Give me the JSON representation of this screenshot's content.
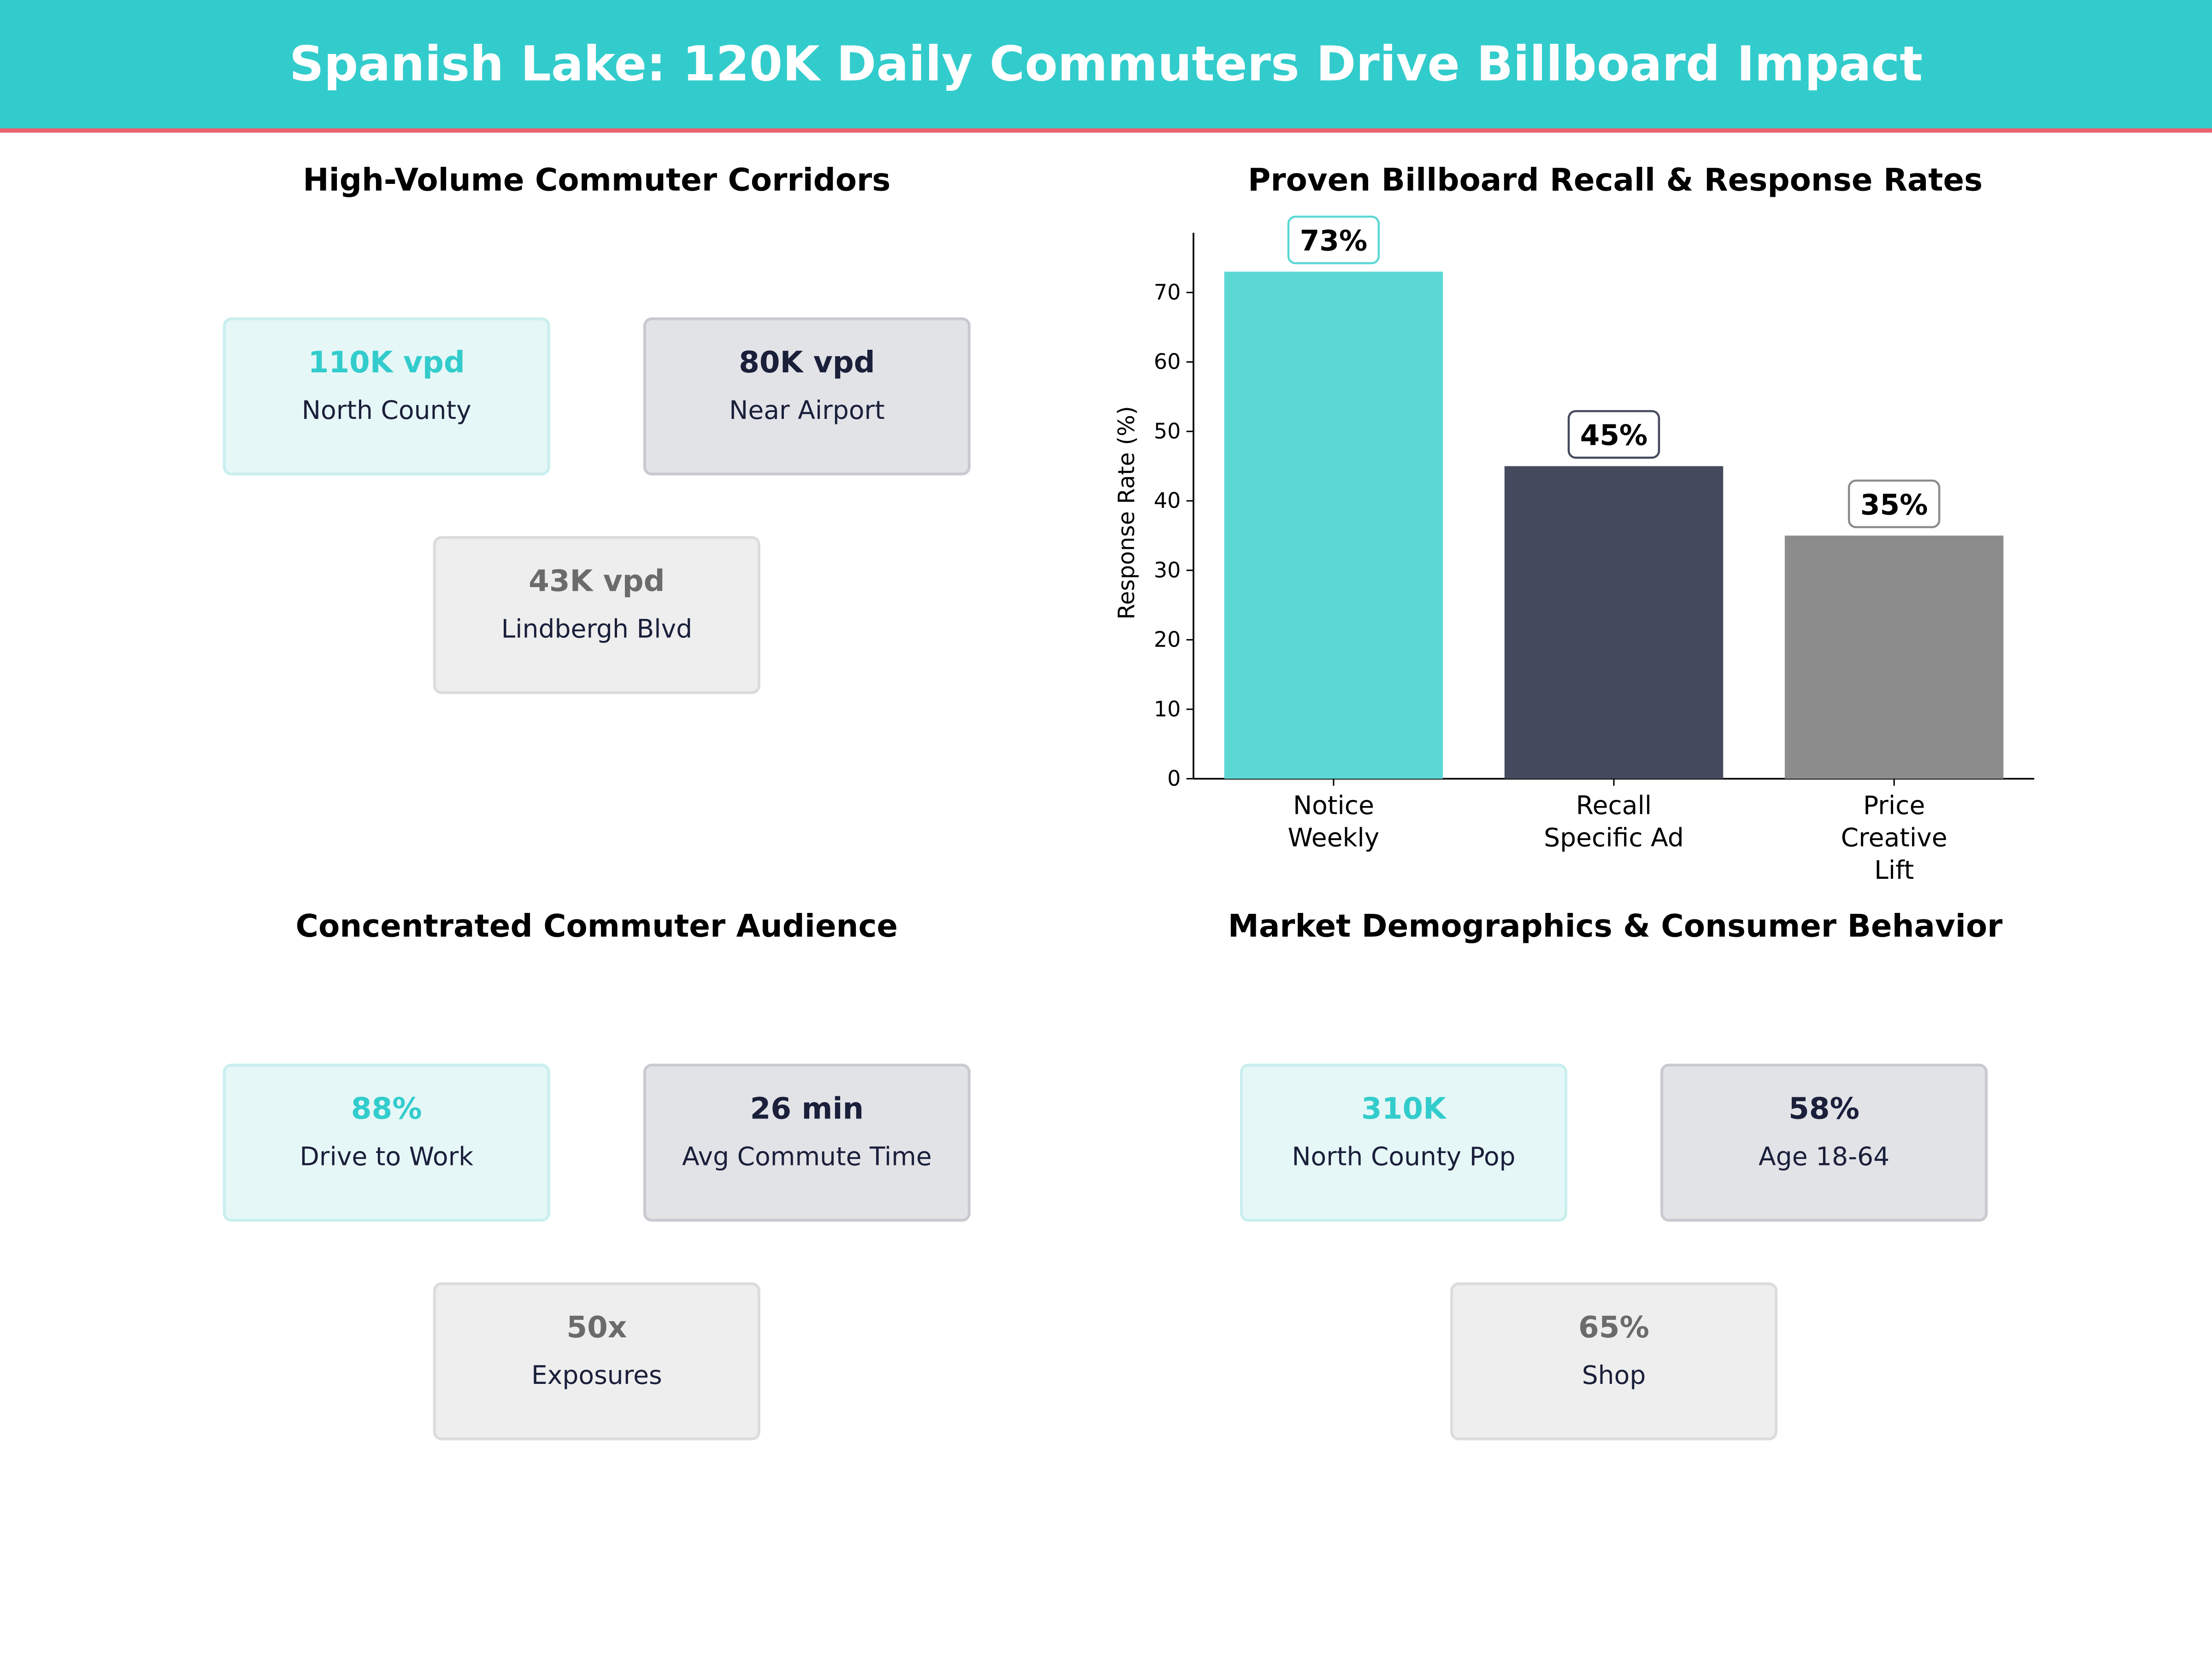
{
  "header": {
    "title": "Spanish Lake: 120K Daily Commuters Drive Billboard Impact"
  },
  "colors": {
    "accent": "#33cccc",
    "rule": "#ee5f6f",
    "dark": "#1a1f3a",
    "gray": "#6b6b6b"
  },
  "corridors": {
    "title": "High-Volume Commuter Corridors",
    "cards": [
      {
        "value": "110K vpd",
        "label": "North County"
      },
      {
        "value": "80K vpd",
        "label": "Near Airport"
      },
      {
        "value": "43K vpd",
        "label": "Lindbergh Blvd"
      }
    ]
  },
  "audience": {
    "title": "Concentrated Commuter Audience",
    "cards": [
      {
        "value": "88%",
        "label": "Drive to Work"
      },
      {
        "value": "26 min",
        "label": "Avg Commute Time"
      },
      {
        "value": "50x",
        "label": "Exposures"
      }
    ]
  },
  "demographics": {
    "title": "Market Demographics & Consumer Behavior",
    "cards": [
      {
        "value": "310K",
        "label": "North County Pop"
      },
      {
        "value": "58%",
        "label": "Age 18-64"
      },
      {
        "value": "65%",
        "label": "Shop"
      }
    ]
  },
  "chart_data": {
    "type": "bar",
    "title": "Proven Billboard Recall & Response Rates",
    "xlabel": "",
    "ylabel": "Response Rate (%)",
    "categories": [
      [
        "Notice",
        "Weekly"
      ],
      [
        "Recall",
        "Specific Ad"
      ],
      [
        "Price",
        "Creative",
        "Lift"
      ]
    ],
    "values": [
      73,
      45,
      35
    ],
    "data_labels": [
      "73%",
      "45%",
      "35%"
    ],
    "colors": [
      "#5cd8d4",
      "#464a5e",
      "#8c8c8c"
    ],
    "label_border_colors": [
      "#5cd8d4",
      "#464a5e",
      "#8c8c8c"
    ],
    "yticks": [
      0,
      10,
      20,
      30,
      40,
      50,
      60,
      70
    ],
    "ylim": [
      0,
      78.6
    ],
    "grid": false
  }
}
